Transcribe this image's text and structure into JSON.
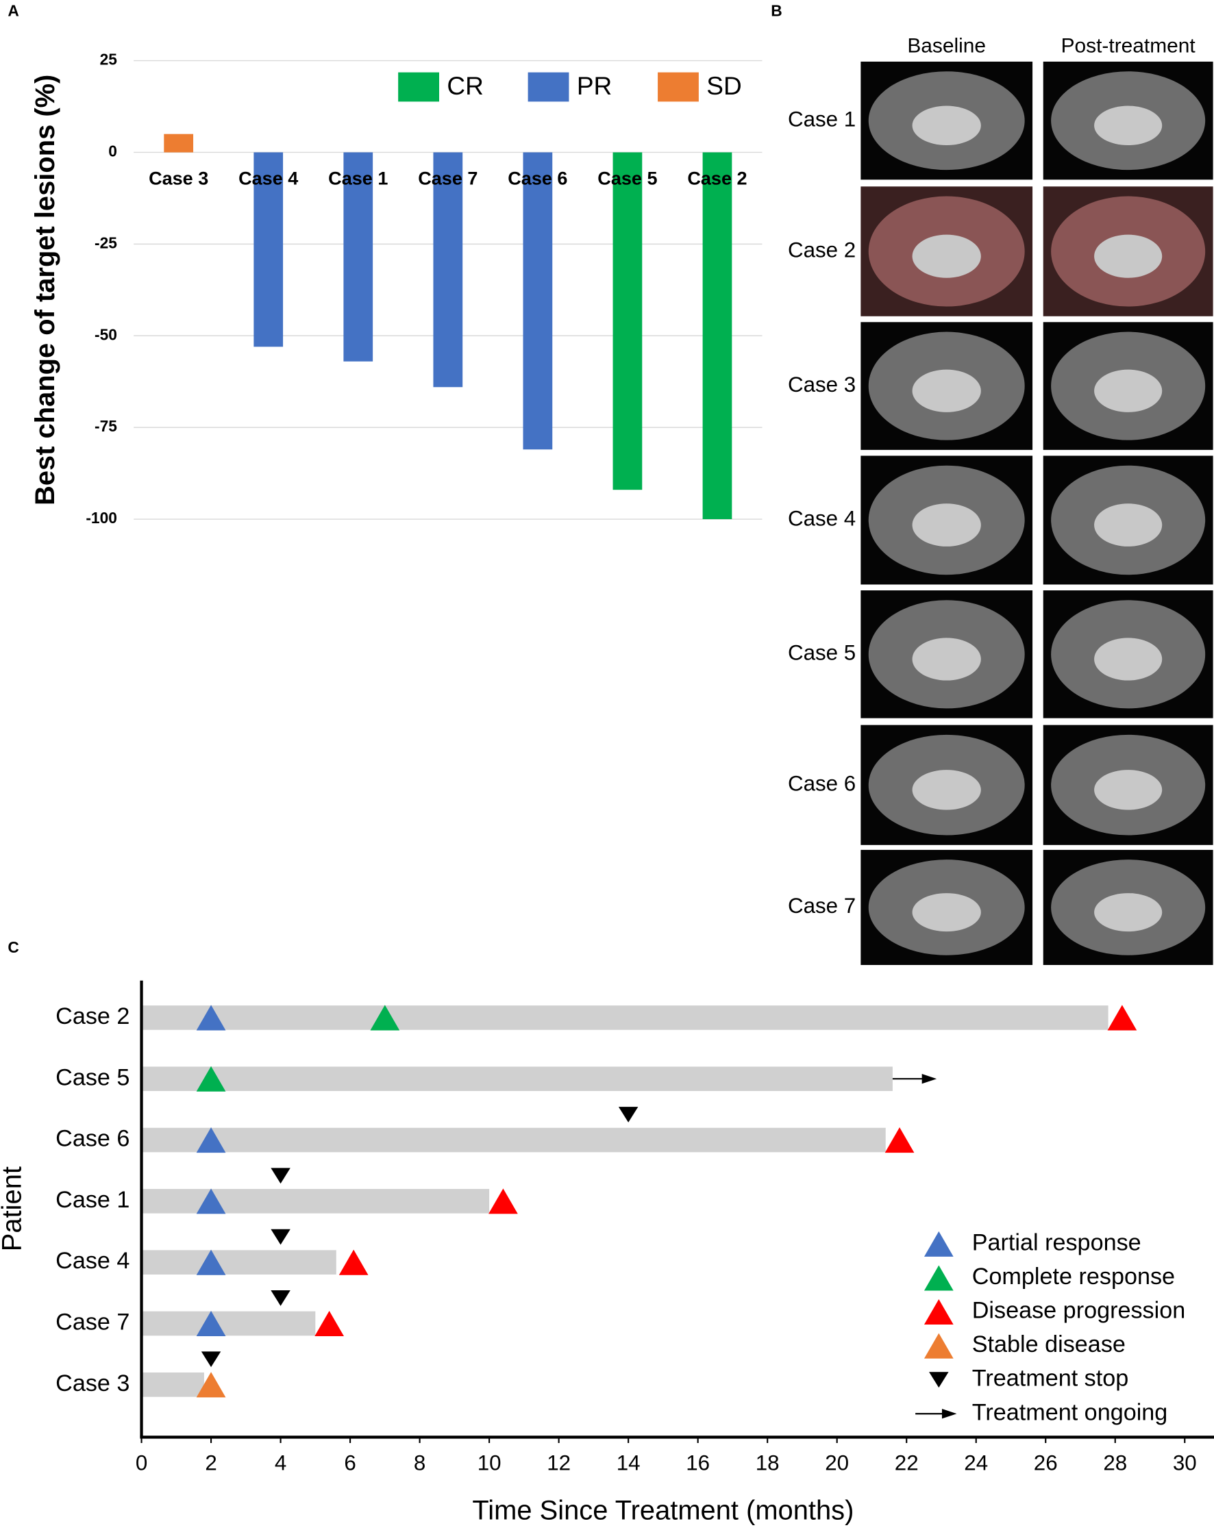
{
  "panel_labels": [
    "A",
    "B",
    "C"
  ],
  "chart_data": [
    {
      "type": "bar",
      "ylabel": "Best change of target lesions (%)",
      "categories": [
        "Case 3",
        "Case 4",
        "Case 1",
        "Case 7",
        "Case 6",
        "Case 5",
        "Case 2"
      ],
      "series": [
        {
          "name": "CR",
          "color": "#00b050",
          "values": [
            null,
            null,
            null,
            null,
            null,
            -92,
            -100
          ]
        },
        {
          "name": "PR",
          "color": "#4472c4",
          "values": [
            null,
            -53,
            -57,
            -64,
            -81,
            null,
            null
          ]
        },
        {
          "name": "SD",
          "color": "#ed7d31",
          "values": [
            5,
            null,
            null,
            null,
            null,
            null,
            null
          ]
        }
      ],
      "ylim": [
        -100,
        25
      ],
      "yticks": [
        25,
        0,
        -25,
        -50,
        -75,
        -100
      ],
      "grid": true,
      "legend": "top-right"
    },
    {
      "type": "swimmer",
      "xlabel": "Time Since Treatment (months)",
      "ylabel": "Patient",
      "categories": [
        "Case 2",
        "Case 5",
        "Case 6",
        "Case 1",
        "Case 4",
        "Case 7",
        "Case 3"
      ],
      "values": [
        27.8,
        21.6,
        21.4,
        10,
        5.6,
        5,
        1.8
      ],
      "color": "#d0d0d0",
      "events": [
        {
          "name": "Partial response",
          "color": "#4472c4",
          "marker": "triangle-up",
          "values": [
            2,
            null,
            2,
            2,
            2,
            2,
            null
          ]
        },
        {
          "name": "Complete response",
          "color": "#00b050",
          "marker": "triangle-up",
          "values": [
            7,
            2,
            null,
            null,
            null,
            null,
            null
          ]
        },
        {
          "name": "Disease progression",
          "color": "#ff0000",
          "marker": "triangle-up",
          "values": [
            28.2,
            null,
            21.8,
            10.4,
            6.1,
            5.4,
            null
          ]
        },
        {
          "name": "Stable disease",
          "color": "#ed7d31",
          "marker": "triangle-up",
          "values": [
            null,
            null,
            null,
            null,
            null,
            null,
            2
          ]
        },
        {
          "name": "Treatment stop",
          "color": "#000000",
          "marker": "triangle-down",
          "values": [
            null,
            null,
            14,
            4,
            4,
            4,
            2
          ]
        },
        {
          "name": "Treatment ongoing",
          "color": "#000000",
          "marker": "arrow",
          "values": [
            null,
            22.8,
            null,
            null,
            null,
            null,
            null
          ]
        }
      ],
      "xlim": [
        0,
        30
      ],
      "xticks": [
        0,
        2,
        4,
        6,
        8,
        10,
        12,
        14,
        16,
        18,
        20,
        22,
        24,
        26,
        28,
        30
      ],
      "legend": "bottom-right"
    }
  ],
  "panel_b": {
    "columns": [
      "Baseline",
      "Post-treatment"
    ],
    "rows": [
      "Case 1",
      "Case 2",
      "Case 3",
      "Case 4",
      "Case 5",
      "Case 6",
      "Case 7"
    ]
  }
}
